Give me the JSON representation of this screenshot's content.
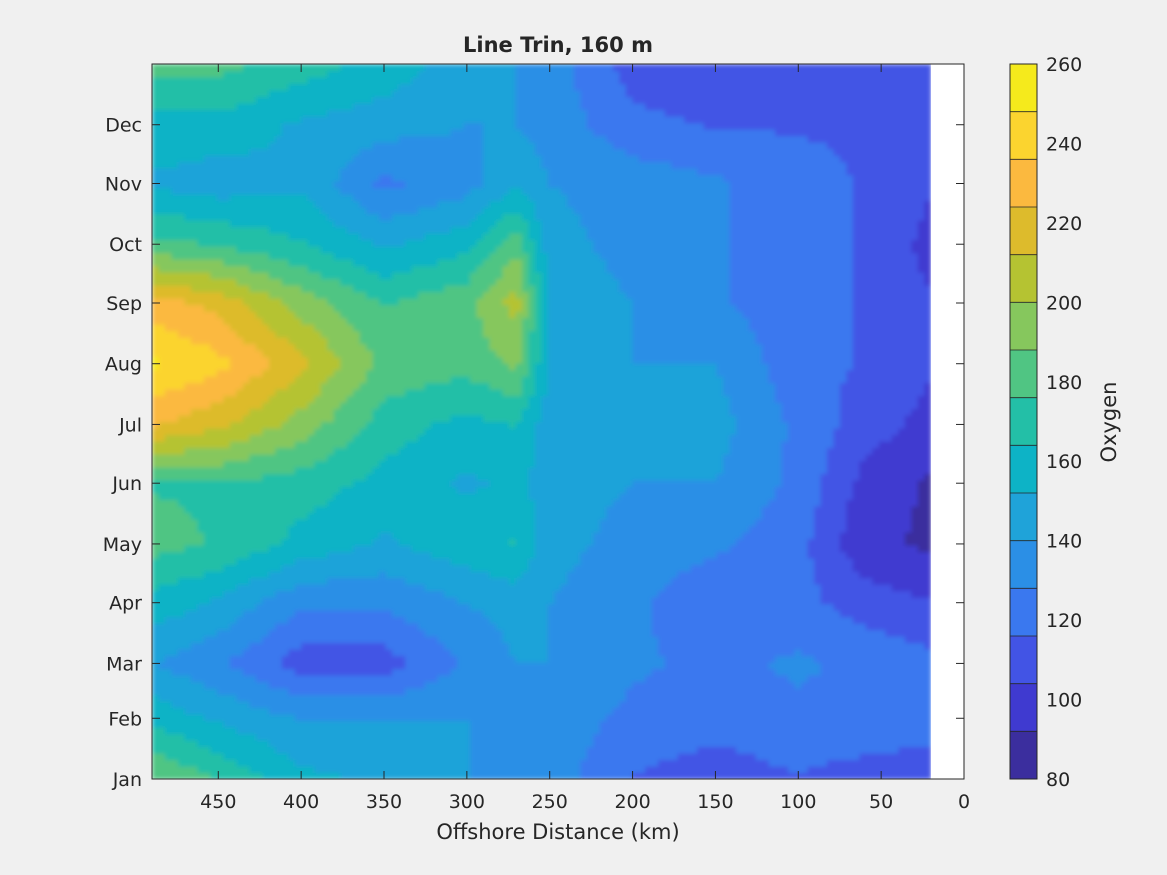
{
  "chart_data": {
    "type": "heatmap",
    "subtype": "filled-contour",
    "title": "Line Trin, 160 m",
    "xlabel": "Offshore Distance (km)",
    "ylabel": "",
    "x_reversed": true,
    "xlim": [
      0,
      490
    ],
    "x_ticks": [
      450,
      400,
      350,
      300,
      250,
      200,
      150,
      100,
      50,
      0
    ],
    "y_ticks": [
      "Jan",
      "Feb",
      "Mar",
      "Apr",
      "May",
      "Jun",
      "Jul",
      "Aug",
      "Sep",
      "Oct",
      "Nov",
      "Dec"
    ],
    "y_tick_days": [
      1,
      32,
      60,
      91,
      121,
      152,
      182,
      213,
      244,
      274,
      305,
      335
    ],
    "ylim_days": [
      1,
      366
    ],
    "data_xlim": [
      20,
      490
    ],
    "colorbar": {
      "label": "Oxygen",
      "range": [
        80,
        260
      ],
      "step": 20,
      "tick_values": [
        80,
        100,
        120,
        140,
        160,
        180,
        200,
        220,
        240,
        260
      ],
      "colors": [
        "#3b2e9e",
        "#3f3ad0",
        "#4254e5",
        "#3a78ef",
        "#2b8fe6",
        "#1fa3d9",
        "#0db3c6",
        "#23bfa7",
        "#50c583",
        "#86c75d",
        "#b5c332",
        "#ddbb2c",
        "#fbb93f",
        "#fbd42f",
        "#f5ea1c"
      ]
    },
    "y_months": [
      1,
      32,
      60,
      91,
      121,
      152,
      182,
      213,
      244,
      274,
      305,
      335,
      366
    ],
    "x_nodes": [
      490,
      450,
      400,
      350,
      300,
      270,
      250,
      200,
      150,
      100,
      60,
      20
    ],
    "grid_values": [
      [
        190,
        175,
        155,
        150,
        140,
        135,
        135,
        115,
        110,
        115,
        110,
        110
      ],
      [
        160,
        150,
        140,
        140,
        140,
        140,
        135,
        125,
        120,
        125,
        125,
        120
      ],
      [
        140,
        130,
        110,
        110,
        130,
        140,
        140,
        130,
        125,
        130,
        125,
        120
      ],
      [
        160,
        150,
        130,
        130,
        140,
        145,
        140,
        130,
        120,
        120,
        110,
        105
      ],
      [
        180,
        175,
        160,
        150,
        160,
        165,
        145,
        135,
        130,
        120,
        95,
        90
      ],
      [
        175,
        175,
        170,
        160,
        150,
        155,
        145,
        140,
        140,
        125,
        100,
        90
      ],
      [
        225,
        215,
        195,
        170,
        160,
        165,
        145,
        140,
        145,
        125,
        110,
        100
      ],
      [
        250,
        240,
        215,
        185,
        180,
        190,
        150,
        140,
        140,
        120,
        115,
        105
      ],
      [
        230,
        220,
        195,
        175,
        185,
        205,
        150,
        140,
        130,
        120,
        115,
        105
      ],
      [
        180,
        175,
        165,
        150,
        160,
        185,
        145,
        135,
        130,
        120,
        115,
        100
      ],
      [
        150,
        145,
        150,
        125,
        135,
        150,
        140,
        135,
        130,
        120,
        115,
        105
      ],
      [
        160,
        160,
        150,
        145,
        140,
        140,
        135,
        120,
        115,
        115,
        115,
        110
      ],
      [
        180,
        180,
        170,
        160,
        145,
        140,
        135,
        110,
        105,
        110,
        115,
        115
      ]
    ]
  }
}
